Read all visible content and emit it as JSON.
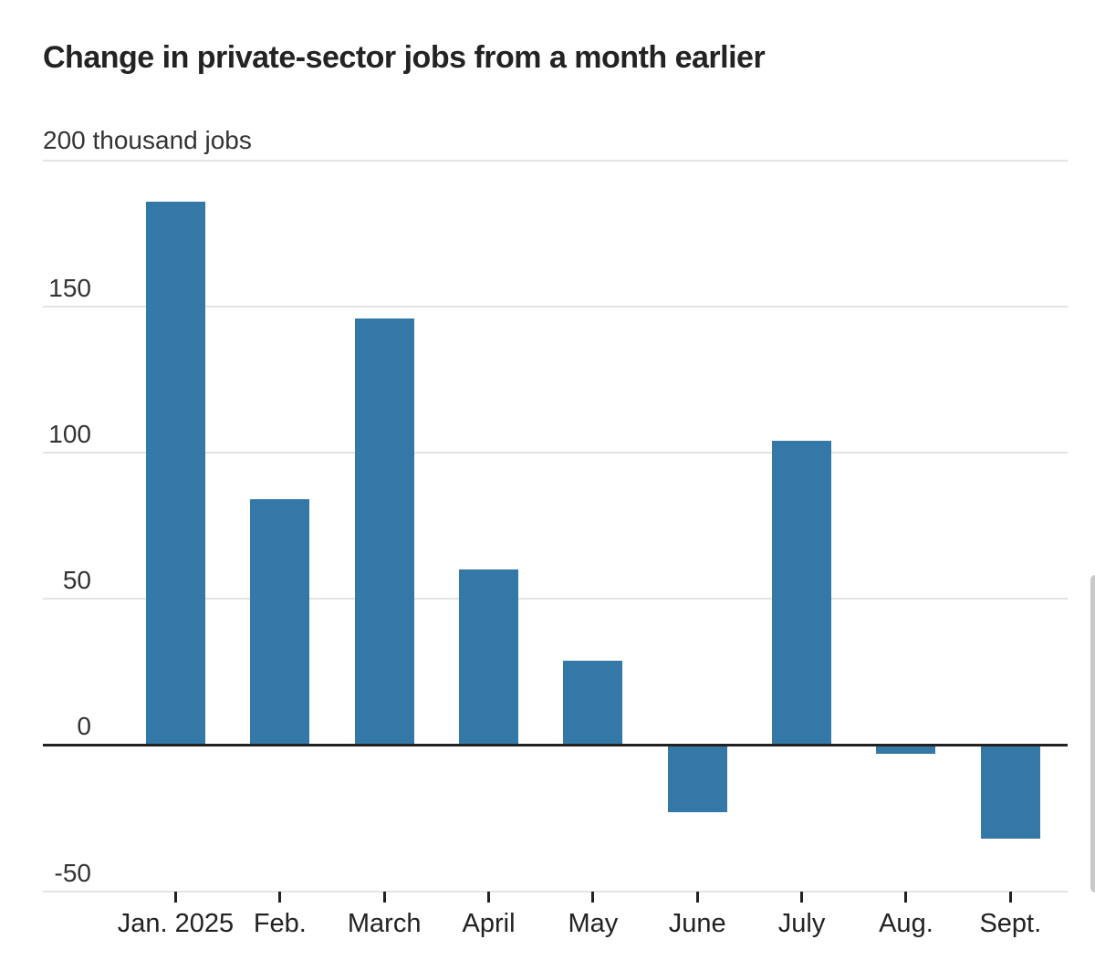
{
  "title": "Change in private-sector jobs from a month earlier",
  "y_axis": {
    "top_label": "200 thousand jobs",
    "tick_labels": [
      "150",
      "100",
      "50",
      "0",
      "-50"
    ]
  },
  "chart_data": {
    "type": "bar",
    "title": "Change in private-sector jobs from a month earlier",
    "ylabel": "thousand jobs",
    "y_top_tick_label": "200 thousand jobs",
    "categories": [
      "Jan. 2025",
      "Feb.",
      "March",
      "April",
      "May",
      "June",
      "July",
      "Aug.",
      "Sept."
    ],
    "values": [
      186,
      84,
      146,
      60,
      29,
      -23,
      104,
      -3,
      -32
    ],
    "ylim": [
      -50,
      200
    ],
    "yticks": [
      200,
      150,
      100,
      50,
      0,
      -50
    ],
    "grid": true,
    "legend": "none",
    "bar_color": "#3478A7",
    "gridline_color": "#e4e4e4",
    "zero_line_color": "#222222",
    "text_color": "#333333",
    "title_color": "#232323"
  },
  "scrollbar": {
    "present": "true"
  }
}
